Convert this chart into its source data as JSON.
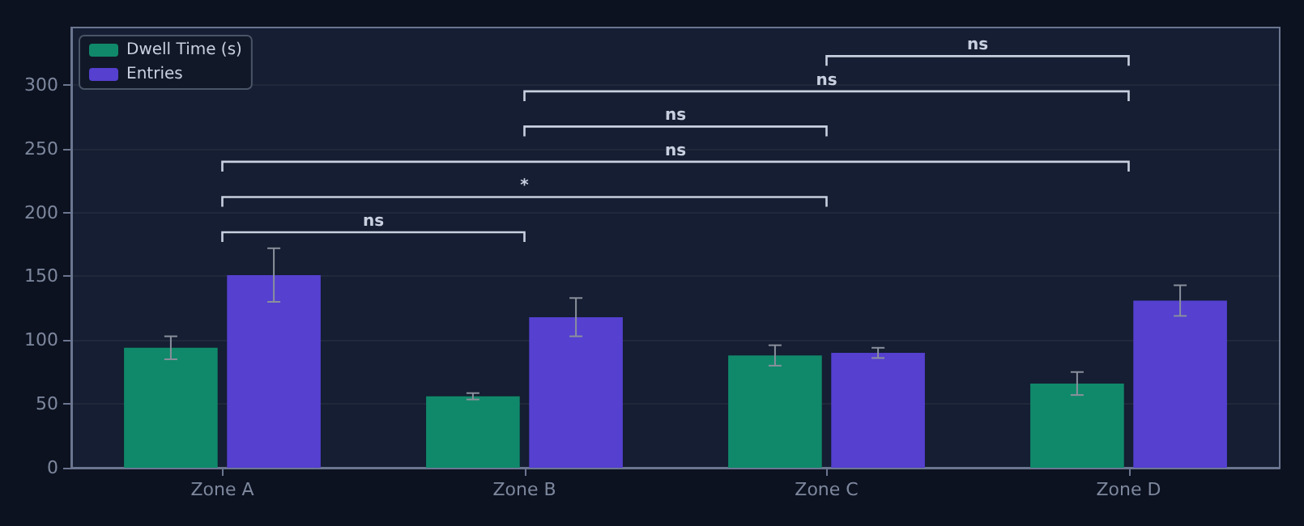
{
  "chart_data": {
    "type": "bar",
    "categories": [
      "Zone A",
      "Zone B",
      "Zone C",
      "Zone D"
    ],
    "series": [
      {
        "name": "Dwell Time (s)",
        "color": "#10896a",
        "values": [
          94,
          56,
          88,
          66
        ],
        "errors": [
          9,
          2.5,
          8,
          9
        ]
      },
      {
        "name": "Entries",
        "color": "#5540d0",
        "values": [
          151,
          118,
          90,
          131
        ],
        "errors": [
          21,
          15,
          4,
          12
        ]
      }
    ],
    "ylim": [
      0,
      345
    ],
    "yticks": [
      0,
      50,
      100,
      150,
      200,
      250,
      300
    ],
    "grid": "y",
    "legend": "top left",
    "annotations": [
      "ns",
      "*",
      "ns",
      "ns",
      "ns",
      "ns"
    ]
  }
}
